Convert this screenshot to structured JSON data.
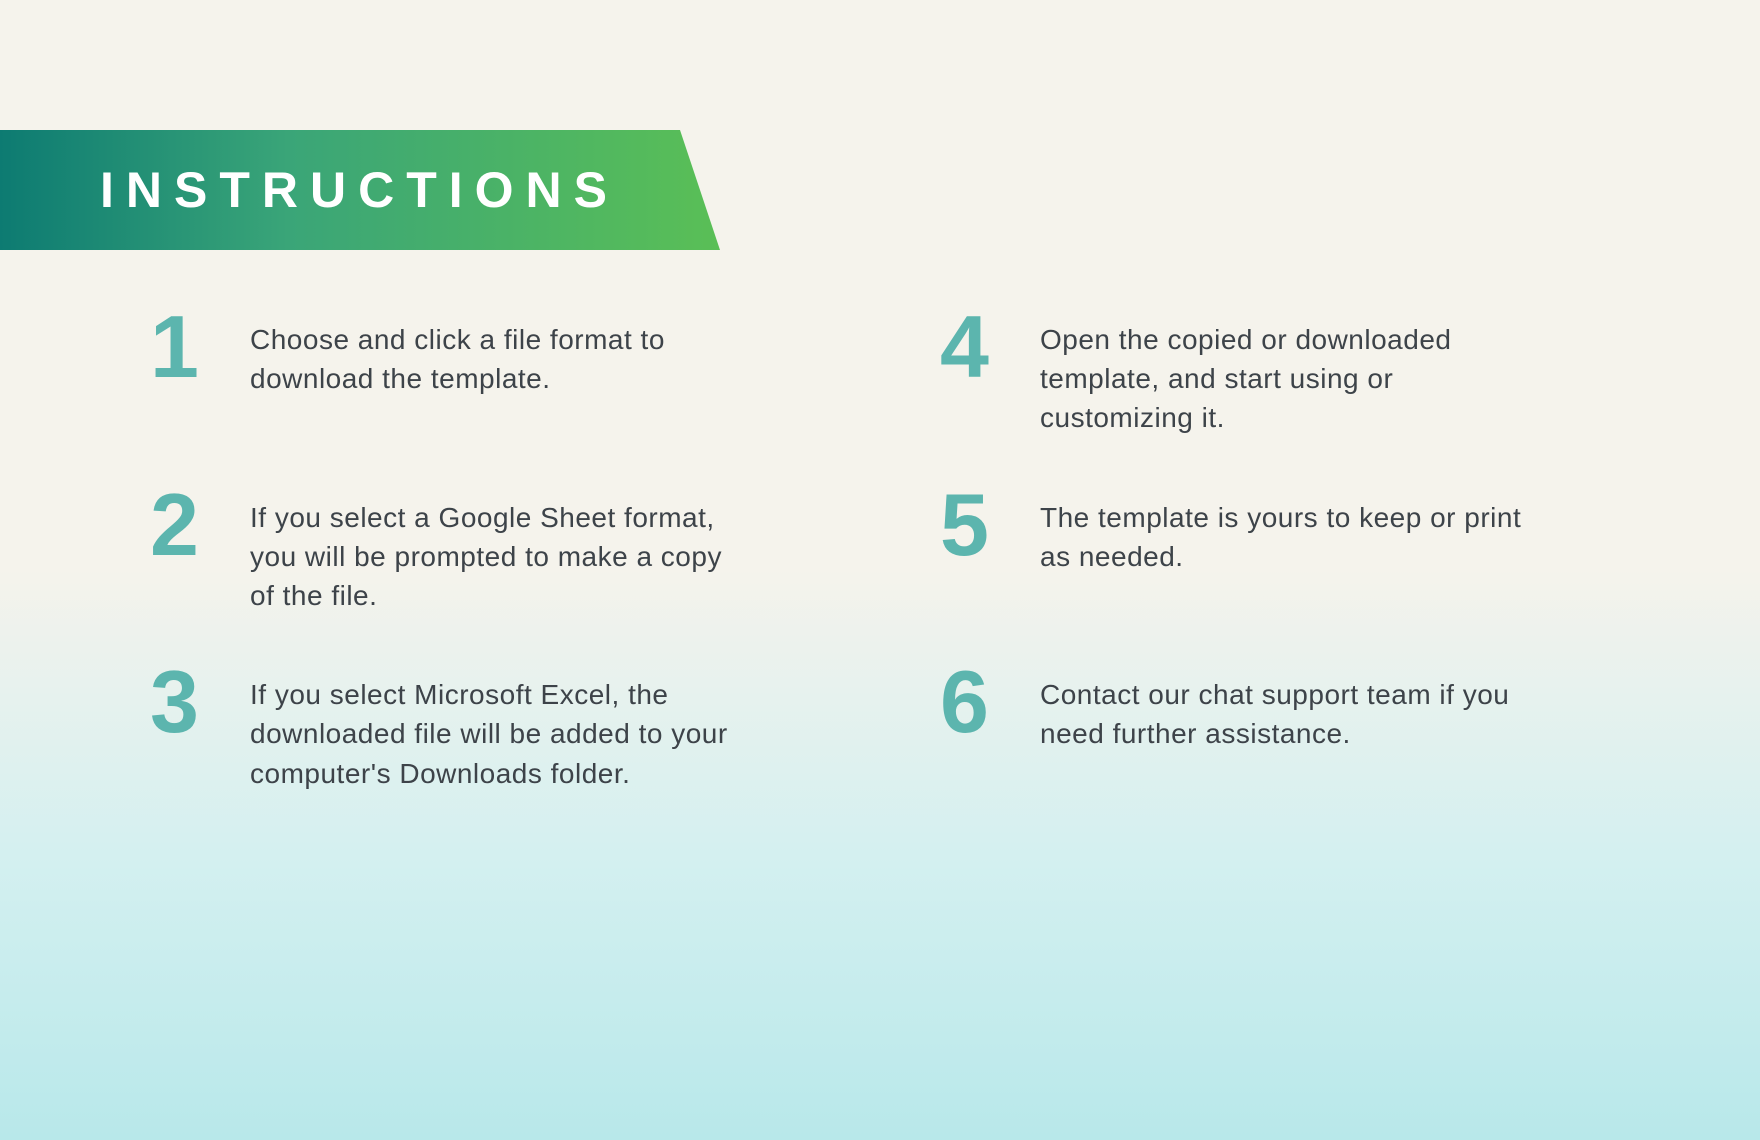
{
  "banner": {
    "title": "INSTRUCTIONS",
    "gradient_start": "#0d7b72",
    "gradient_mid": "#3aa578",
    "gradient_end": "#5abf56",
    "text_color": "#ffffff"
  },
  "background": {
    "top_color": "#f5f3ec",
    "mid_color": "#d4f0f0",
    "bottom_color": "#b8e8ea"
  },
  "steps": {
    "number_color": "#5cb5ae",
    "text_color": "#3d4349",
    "number_fontsize": 88,
    "text_fontsize": 28,
    "items": [
      {
        "number": "1",
        "text": "Choose and click a file format to download the template."
      },
      {
        "number": "2",
        "text": "If you select a Google Sheet format, you will be prompted to make a copy of the file."
      },
      {
        "number": "3",
        "text": "If you select Microsoft Excel, the downloaded file will be added to your computer's Downloads folder."
      },
      {
        "number": "4",
        "text": "Open the copied or downloaded template, and start using or customizing it."
      },
      {
        "number": "5",
        "text": "The template is yours to keep or print as needed."
      },
      {
        "number": "6",
        "text": "Contact our chat support  team if you need further assistance."
      }
    ]
  }
}
